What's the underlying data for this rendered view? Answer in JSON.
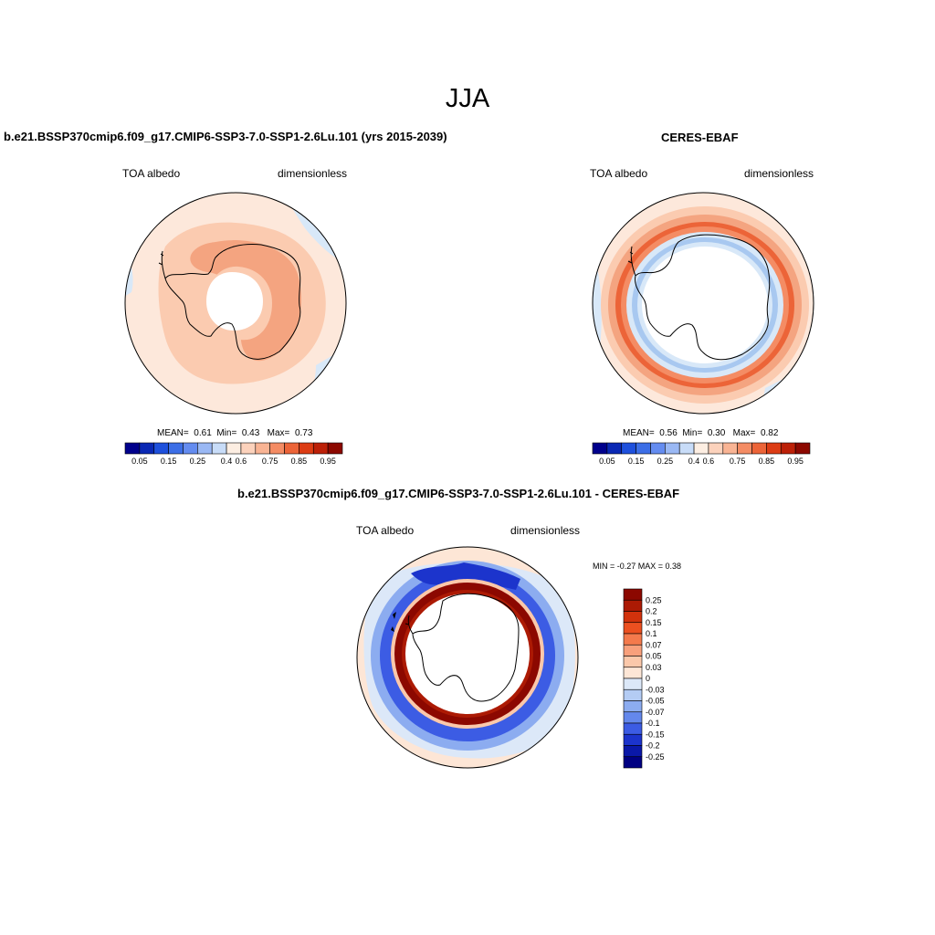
{
  "figure": {
    "title": "JJA"
  },
  "colors": {
    "pale_pink": "#fde8db",
    "peach": "#fbcbb0",
    "salmon": "#f4a480",
    "light_blue": "#d8e8f8",
    "med_blue": "#a8c8f0",
    "dark_red": "#9e1508"
  },
  "panels": [
    {
      "id": "model",
      "title": "b.e21.BSSP370cmip6.f09_g17.CMIP6-SSP3-7.0-SSP1-2.6Lu.101 (yrs 2015-2039)",
      "left_label": "TOA albedo",
      "right_label": "dimensionless",
      "stats": {
        "mean_label": "MEAN=",
        "mean": "0.61",
        "min_label": "Min=",
        "min": "0.43",
        "max_label": "Max=",
        "max": "0.73"
      }
    },
    {
      "id": "obs",
      "title": "CERES-EBAF",
      "left_label": "TOA albedo",
      "right_label": "dimensionless",
      "stats": {
        "mean_label": "MEAN=",
        "mean": "0.56",
        "min_label": "Min=",
        "min": "0.30",
        "max_label": "Max=",
        "max": "0.82"
      }
    },
    {
      "id": "diff",
      "title": "b.e21.BSSP370cmip6.f09_g17.CMIP6-SSP3-7.0-SSP1-2.6Lu.101 - CERES-EBAF",
      "left_label": "TOA albedo",
      "right_label": "dimensionless",
      "stats_text": "MIN =  -0.27 MAX =   0.38"
    }
  ],
  "colorbar_h": {
    "colors": [
      "#00008c",
      "#0a28b4",
      "#1e50dc",
      "#3c6ee6",
      "#648cf0",
      "#9ab8f4",
      "#c8dcf8",
      "#fdeee2",
      "#fcd2bc",
      "#f9b494",
      "#f48c64",
      "#ec6438",
      "#dc3c14",
      "#bc2008",
      "#8c0800"
    ],
    "labels": [
      "0.05",
      "0.15",
      "0.25",
      "0.4",
      "0.6",
      "0.75",
      "0.85",
      "0.95"
    ]
  },
  "colorbar_v": {
    "colors": [
      "#8c0800",
      "#ac1a04",
      "#d2320c",
      "#ec5020",
      "#f47a4c",
      "#f8a07c",
      "#fbc8aa",
      "#fde6d6",
      "#dce8f8",
      "#b4ccf4",
      "#8cacf0",
      "#6488ec",
      "#3c5ce4",
      "#1c34cc",
      "#0a18a8",
      "#000082"
    ],
    "labels": [
      "0.25",
      "0.2",
      "0.15",
      "0.1",
      "0.07",
      "0.05",
      "0.03",
      "0",
      "-0.03",
      "-0.05",
      "-0.07",
      "-0.1",
      "-0.15",
      "-0.2",
      "-0.25"
    ]
  }
}
